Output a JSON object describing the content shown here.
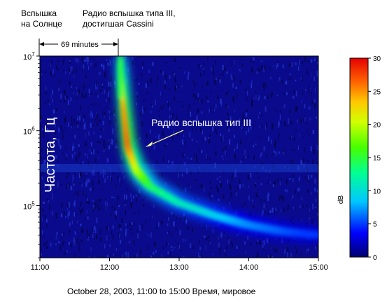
{
  "annotations": {
    "flare_line1": "Вспышка",
    "flare_line2": "на Солнце",
    "cassini_line1": "Радио вспышка типа III,",
    "cassini_line2": "достигшая Cassini",
    "delay": "69 minutes",
    "burst_label": "Радио вспышка тип III"
  },
  "footer": {
    "date_range": "October 28, 2003, 11:00 to 15:00",
    "time_label": "Время, мировое"
  },
  "colors": {
    "background_noise": "#0a0a8c",
    "burst_core": "#ff2000",
    "arrow": "#ffff99",
    "axis_text": "#000000"
  },
  "chart_data": {
    "type": "heatmap",
    "title": "",
    "xlabel": "",
    "ylabel": "Частота, Гц",
    "x": {
      "ticks": [
        "11:00",
        "12:00",
        "13:00",
        "14:00",
        "15:00"
      ],
      "range_hours": [
        11,
        15
      ]
    },
    "y": {
      "scale": "log",
      "ticks": [
        {
          "label_base": "10",
          "label_exp": "7",
          "value": 10000000
        },
        {
          "label_base": "10",
          "label_exp": "6",
          "value": 1000000
        },
        {
          "label_base": "10",
          "label_exp": "5",
          "value": 100000
        }
      ],
      "range": [
        20000,
        10000000
      ]
    },
    "colorbar": {
      "unit": "dB",
      "range": [
        0,
        30
      ],
      "ticks": [
        "0",
        "5",
        "10",
        "15",
        "20",
        "25",
        "30"
      ]
    },
    "burst": {
      "onset_time": "12:09",
      "flare_time": "11:00",
      "delay_minutes": 69,
      "drift_trace": [
        {
          "t": 12.17,
          "f": 8000000,
          "db": 14
        },
        {
          "t": 12.22,
          "f": 2000000,
          "db": 24
        },
        {
          "t": 12.28,
          "f": 600000,
          "db": 26
        },
        {
          "t": 12.4,
          "f": 300000,
          "db": 20
        },
        {
          "t": 12.6,
          "f": 180000,
          "db": 14
        },
        {
          "t": 13.0,
          "f": 110000,
          "db": 11
        },
        {
          "t": 13.5,
          "f": 75000,
          "db": 9
        },
        {
          "t": 14.0,
          "f": 55000,
          "db": 7
        },
        {
          "t": 14.5,
          "f": 45000,
          "db": 6
        },
        {
          "t": 15.0,
          "f": 40000,
          "db": 5
        }
      ]
    }
  }
}
